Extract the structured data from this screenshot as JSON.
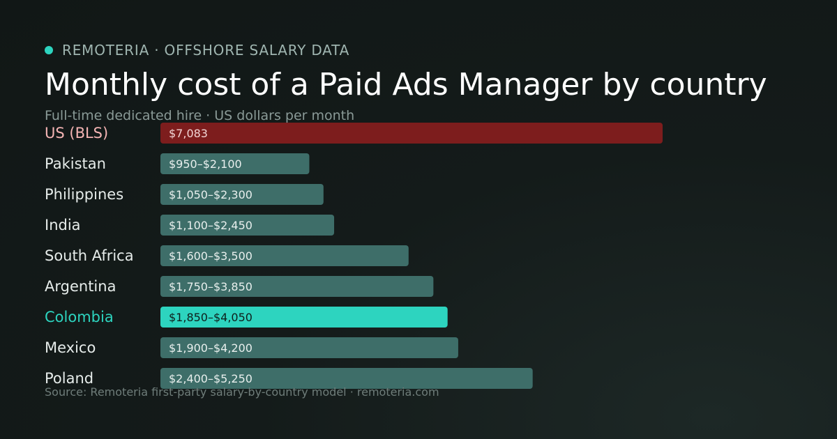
{
  "header": {
    "brand": "REMOTERIA · OFFSHORE SALARY DATA",
    "title": "Monthly cost of a Paid Ads Manager by country",
    "subtitle": "Full-time dedicated hire · US dollars per month"
  },
  "footer": {
    "source": "Source: Remoteria first-party salary-by-country model · remoteria.com"
  },
  "colors": {
    "accent": "#2dd4bf",
    "us_bar": "#7d1d1d",
    "us_label": "#f4b4b4",
    "default_bar": "#3e6e69",
    "default_label": "#e6ecea",
    "highlight_bar": "#2dd4bf",
    "highlight_text": "#0e1f1c"
  },
  "chart_data": {
    "type": "bar",
    "orientation": "horizontal",
    "unit": "US dollars per month",
    "xlim": [
      0,
      8000
    ],
    "bars": [
      {
        "category": "US (BLS)",
        "value": 7083,
        "label": "$7,083",
        "style": "us"
      },
      {
        "category": "Pakistan",
        "min": 950,
        "max": 2100,
        "label": "$950–$2,100",
        "style": "default"
      },
      {
        "category": "Philippines",
        "min": 1050,
        "max": 2300,
        "label": "$1,050–$2,300",
        "style": "default"
      },
      {
        "category": "India",
        "min": 1100,
        "max": 2450,
        "label": "$1,100–$2,450",
        "style": "default"
      },
      {
        "category": "South Africa",
        "min": 1600,
        "max": 3500,
        "label": "$1,600–$3,500",
        "style": "default"
      },
      {
        "category": "Argentina",
        "min": 1750,
        "max": 3850,
        "label": "$1,750–$3,850",
        "style": "default"
      },
      {
        "category": "Colombia",
        "min": 1850,
        "max": 4050,
        "label": "$1,850–$4,050",
        "style": "highlight"
      },
      {
        "category": "Mexico",
        "min": 1900,
        "max": 4200,
        "label": "$1,900–$4,200",
        "style": "default"
      },
      {
        "category": "Poland",
        "min": 2400,
        "max": 5250,
        "label": "$2,400–$5,250",
        "style": "default"
      }
    ]
  }
}
